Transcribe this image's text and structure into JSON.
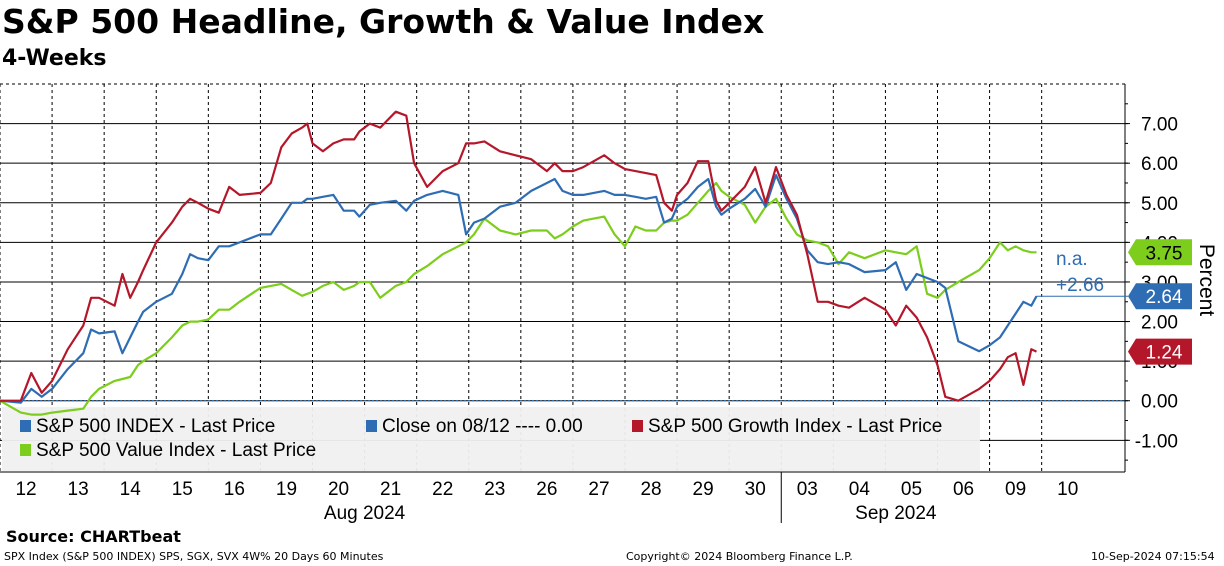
{
  "title": "S&P 500 Headline, Growth & Value Index",
  "subtitle": "4-Weeks",
  "footer": {
    "source": "Source: CHARTbeat",
    "left": "SPX Index (S&P 500 INDEX) SPS, SGX, SVX 4W% 20 Days 60 Minutes",
    "center": "Copyright© 2024 Bloomberg Finance L.P.",
    "right": "10-Sep-2024 07:15:54"
  },
  "colors": {
    "headline": "#2e6db4",
    "growth": "#b5172a",
    "value": "#7ccd1c",
    "close": "#2e6db4",
    "grid": "#000000",
    "legend_bg": "#f0f0f0"
  },
  "chart_data": {
    "type": "line",
    "title": "S&P 500 Headline, Growth & Value Index",
    "subtitle": "4-Weeks",
    "ylabel": "Percent",
    "ylim": [
      -1.8,
      8.0
    ],
    "yticks": [
      -1,
      0,
      1,
      2,
      3,
      4,
      5,
      6,
      7
    ],
    "ytick_labels": [
      "-1.00",
      "0.00",
      "1.00",
      "2.00",
      "3.00",
      "4.00",
      "5.00",
      "6.00",
      "7.00"
    ],
    "xlim": [
      0,
      21.6
    ],
    "x_tick_labels": [
      "12",
      "13",
      "14",
      "15",
      "16",
      "19",
      "20",
      "21",
      "22",
      "23",
      "26",
      "27",
      "28",
      "29",
      "30",
      "03",
      "04",
      "05",
      "06",
      "09",
      "10"
    ],
    "month_labels": [
      {
        "label": "Aug 2024",
        "day_index": 7
      },
      {
        "label": "Sep 2024",
        "day_index": 17.2
      }
    ],
    "month_separator_day_index": 15.0,
    "grid": true,
    "legend_position": "bottom-left",
    "series": [
      {
        "name": "S&P 500 INDEX - Last Price",
        "key": "headline",
        "last_value": "2.64",
        "x": [
          0,
          0.4,
          0.6,
          0.8,
          1.0,
          1.3,
          1.6,
          1.75,
          1.9,
          2.2,
          2.35,
          2.5,
          2.65,
          2.75,
          3.0,
          3.3,
          3.5,
          3.65,
          3.8,
          4.0,
          4.2,
          4.4,
          4.6,
          5.0,
          5.2,
          5.4,
          5.6,
          5.8,
          5.9,
          6.0,
          6.2,
          6.4,
          6.6,
          6.8,
          6.9,
          7.1,
          7.3,
          7.6,
          7.8,
          7.95,
          8.2,
          8.5,
          8.8,
          8.95,
          9.1,
          9.3,
          9.6,
          9.9,
          10.2,
          10.5,
          10.65,
          10.8,
          11.0,
          11.2,
          11.6,
          11.8,
          12.0,
          12.2,
          12.4,
          12.6,
          12.75,
          12.9,
          13.0,
          13.2,
          13.4,
          13.6,
          13.75,
          13.85,
          14.0,
          14.3,
          14.5,
          14.7,
          14.9,
          15.1,
          15.3,
          15.5,
          15.7,
          15.9,
          16.1,
          16.3,
          16.6,
          17.0,
          17.2,
          17.4,
          17.6,
          17.8,
          18.0,
          18.15,
          18.4,
          18.8,
          19.0,
          19.2,
          19.35,
          19.5,
          19.65,
          19.8,
          19.9
        ],
        "y": [
          0.0,
          -0.05,
          0.3,
          0.1,
          0.3,
          0.8,
          1.2,
          1.8,
          1.7,
          1.75,
          1.2,
          1.6,
          2.0,
          2.25,
          2.5,
          2.7,
          3.2,
          3.7,
          3.6,
          3.55,
          3.9,
          3.9,
          4.0,
          4.2,
          4.2,
          4.6,
          5.0,
          5.0,
          5.1,
          5.1,
          5.15,
          5.2,
          4.8,
          4.8,
          4.65,
          4.95,
          5.0,
          5.05,
          4.8,
          5.05,
          5.2,
          5.3,
          5.2,
          4.2,
          4.5,
          4.6,
          4.9,
          5.0,
          5.3,
          5.5,
          5.6,
          5.3,
          5.2,
          5.2,
          5.3,
          5.2,
          5.2,
          5.15,
          5.1,
          5.15,
          4.5,
          4.6,
          4.9,
          5.1,
          5.4,
          5.6,
          4.9,
          4.7,
          4.85,
          5.1,
          5.35,
          4.9,
          5.7,
          5.1,
          4.6,
          3.8,
          3.5,
          3.45,
          3.5,
          3.45,
          3.25,
          3.3,
          3.5,
          2.8,
          3.2,
          3.1,
          3.0,
          2.85,
          1.5,
          1.25,
          1.4,
          1.6,
          1.9,
          2.2,
          2.5,
          2.4,
          2.64
        ]
      },
      {
        "name": "Close on 08/12 ---- 0.00",
        "key": "close",
        "constant": 0.0,
        "last_value": "0.00"
      },
      {
        "name": "S&P 500 Growth Index - Last Price",
        "key": "growth",
        "last_value": "1.24",
        "x": [
          0,
          0.4,
          0.6,
          0.8,
          1.0,
          1.3,
          1.6,
          1.75,
          1.9,
          2.2,
          2.35,
          2.5,
          2.65,
          2.75,
          3.0,
          3.3,
          3.5,
          3.65,
          3.8,
          4.0,
          4.2,
          4.4,
          4.6,
          5.0,
          5.2,
          5.4,
          5.6,
          5.8,
          5.9,
          6.0,
          6.2,
          6.4,
          6.6,
          6.8,
          6.9,
          7.1,
          7.3,
          7.6,
          7.8,
          7.95,
          8.2,
          8.5,
          8.8,
          8.95,
          9.1,
          9.3,
          9.6,
          9.9,
          10.2,
          10.5,
          10.65,
          10.8,
          11.0,
          11.2,
          11.6,
          11.8,
          12.0,
          12.2,
          12.4,
          12.6,
          12.75,
          12.9,
          13.0,
          13.2,
          13.4,
          13.6,
          13.75,
          13.85,
          14.0,
          14.3,
          14.5,
          14.7,
          14.9,
          15.1,
          15.3,
          15.5,
          15.7,
          15.9,
          16.1,
          16.3,
          16.6,
          17.0,
          17.2,
          17.4,
          17.6,
          17.8,
          18.0,
          18.15,
          18.4,
          18.8,
          19.0,
          19.2,
          19.35,
          19.5,
          19.65,
          19.8,
          19.9
        ],
        "y": [
          0.0,
          0.0,
          0.7,
          0.2,
          0.5,
          1.3,
          1.9,
          2.6,
          2.6,
          2.4,
          3.2,
          2.6,
          3.0,
          3.3,
          4.0,
          4.5,
          4.9,
          5.1,
          5.0,
          4.85,
          4.75,
          5.4,
          5.2,
          5.25,
          5.5,
          6.4,
          6.75,
          6.9,
          7.0,
          6.5,
          6.3,
          6.5,
          6.6,
          6.6,
          6.8,
          7.0,
          6.9,
          7.3,
          7.2,
          6.0,
          5.4,
          5.8,
          6.0,
          6.5,
          6.5,
          6.55,
          6.3,
          6.2,
          6.1,
          5.8,
          6.0,
          5.8,
          5.8,
          5.9,
          6.2,
          6.0,
          5.85,
          5.8,
          5.75,
          5.7,
          5.0,
          4.8,
          5.2,
          5.5,
          6.05,
          6.05,
          5.05,
          4.8,
          5.0,
          5.4,
          5.9,
          5.0,
          5.9,
          5.2,
          4.7,
          3.7,
          2.5,
          2.5,
          2.4,
          2.35,
          2.6,
          2.3,
          1.9,
          2.4,
          2.1,
          1.6,
          0.9,
          0.1,
          0.0,
          0.3,
          0.5,
          0.8,
          1.1,
          1.2,
          0.4,
          1.3,
          1.24
        ]
      },
      {
        "name": "S&P 500 Value Index - Last Price",
        "key": "value",
        "last_value": "3.75",
        "x": [
          0,
          0.4,
          0.6,
          0.8,
          1.0,
          1.3,
          1.6,
          1.75,
          1.9,
          2.2,
          2.35,
          2.5,
          2.65,
          2.75,
          3.0,
          3.3,
          3.5,
          3.65,
          3.8,
          4.0,
          4.2,
          4.4,
          4.6,
          5.0,
          5.2,
          5.4,
          5.6,
          5.8,
          5.9,
          6.0,
          6.2,
          6.4,
          6.6,
          6.8,
          6.9,
          7.1,
          7.3,
          7.6,
          7.8,
          7.95,
          8.2,
          8.5,
          8.8,
          8.95,
          9.1,
          9.3,
          9.6,
          9.9,
          10.2,
          10.5,
          10.65,
          10.8,
          11.0,
          11.2,
          11.6,
          11.8,
          12.0,
          12.2,
          12.4,
          12.6,
          12.75,
          12.9,
          13.0,
          13.2,
          13.4,
          13.6,
          13.75,
          13.85,
          14.0,
          14.3,
          14.5,
          14.7,
          14.9,
          15.1,
          15.3,
          15.5,
          15.7,
          15.9,
          16.1,
          16.3,
          16.6,
          17.0,
          17.2,
          17.4,
          17.6,
          17.8,
          18.0,
          18.15,
          18.4,
          18.8,
          19.0,
          19.2,
          19.35,
          19.5,
          19.65,
          19.8,
          19.9
        ],
        "y": [
          0.0,
          -0.3,
          -0.35,
          -0.35,
          -0.3,
          -0.25,
          -0.2,
          0.1,
          0.3,
          0.5,
          0.55,
          0.6,
          0.9,
          1.0,
          1.2,
          1.6,
          1.9,
          2.0,
          2.0,
          2.05,
          2.3,
          2.3,
          2.5,
          2.85,
          2.9,
          2.95,
          2.8,
          2.65,
          2.7,
          2.75,
          2.9,
          3.0,
          2.8,
          2.9,
          3.0,
          3.0,
          2.6,
          2.9,
          3.0,
          3.2,
          3.4,
          3.7,
          3.9,
          4.0,
          4.2,
          4.6,
          4.3,
          4.2,
          4.3,
          4.3,
          4.1,
          4.2,
          4.4,
          4.55,
          4.65,
          4.2,
          3.9,
          4.4,
          4.3,
          4.3,
          4.5,
          4.55,
          4.55,
          4.7,
          5.0,
          5.3,
          5.5,
          5.3,
          5.15,
          4.95,
          4.5,
          4.9,
          5.1,
          4.6,
          4.2,
          4.05,
          4.0,
          3.9,
          3.45,
          3.75,
          3.6,
          3.8,
          3.75,
          3.7,
          3.9,
          2.7,
          2.6,
          2.8,
          3.0,
          3.3,
          3.6,
          4.0,
          3.8,
          3.9,
          3.8,
          3.75,
          3.75
        ]
      }
    ],
    "annotations": [
      {
        "text": "n.a.",
        "series": "value"
      },
      {
        "text": "+2.66",
        "series": "headline"
      }
    ]
  }
}
